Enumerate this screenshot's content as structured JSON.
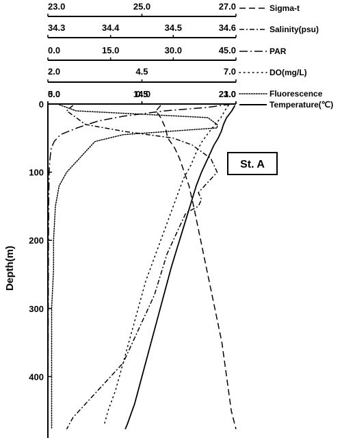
{
  "chart_data": {
    "type": "line",
    "station_label": "St. A",
    "ylabel": "Depth(m)",
    "y_axis": {
      "range": [
        0,
        490
      ],
      "ticks": [
        0,
        100,
        200,
        300,
        400
      ],
      "tick_labels": [
        "0",
        "100",
        "200",
        "300",
        "400"
      ],
      "reversed": true
    },
    "x_axes": [
      {
        "name": "Sigma-t",
        "min": 23.0,
        "max": 27.0,
        "tick_labels": [
          "23.0",
          "25.0",
          "27.0"
        ],
        "style": "dashed"
      },
      {
        "name": "Salinity(psu)",
        "min": 34.3,
        "max": 34.6,
        "tick_labels": [
          "34.3",
          "34.4",
          "34.5",
          "34.6"
        ],
        "style": "dash-dot"
      },
      {
        "name": "PAR",
        "min": 0.0,
        "max": 45.0,
        "tick_labels": [
          "0.0",
          "15.0",
          "30.0",
          "45.0"
        ],
        "style": "long-dash-dot"
      },
      {
        "name": "DO(mg/L)",
        "min": 2.0,
        "max": 7.0,
        "tick_labels": [
          "2.0",
          "4.5",
          "7.0"
        ],
        "style": "sparse-dotted"
      },
      {
        "name": "Fluorescence",
        "min": 0.0,
        "max": 1.0,
        "tick_labels": [
          "0.0",
          "0.5",
          "1.0"
        ],
        "style": "dense-dotted"
      },
      {
        "name": "Temperature(℃)",
        "min": 5.0,
        "max": 23.0,
        "tick_labels": [
          "5.0",
          "14.0",
          "23.0"
        ],
        "style": "solid"
      }
    ],
    "series": [
      {
        "name": "Sigma-t",
        "axis": 0,
        "points": [
          [
            25.4,
            2
          ],
          [
            25.3,
            10
          ],
          [
            25.4,
            20
          ],
          [
            25.5,
            35
          ],
          [
            25.55,
            50
          ],
          [
            25.7,
            65
          ],
          [
            25.8,
            80
          ],
          [
            25.9,
            100
          ],
          [
            26.0,
            120
          ],
          [
            26.1,
            150
          ],
          [
            26.25,
            200
          ],
          [
            26.4,
            250
          ],
          [
            26.55,
            300
          ],
          [
            26.7,
            350
          ],
          [
            26.8,
            400
          ],
          [
            26.9,
            450
          ],
          [
            27.0,
            477
          ]
        ]
      },
      {
        "name": "Salinity(psu)",
        "axis": 1,
        "points": [
          [
            34.34,
            2
          ],
          [
            34.33,
            10
          ],
          [
            34.345,
            20
          ],
          [
            34.36,
            30
          ],
          [
            34.42,
            40
          ],
          [
            34.5,
            50
          ],
          [
            34.53,
            60
          ],
          [
            34.56,
            80
          ],
          [
            34.57,
            100
          ],
          [
            34.56,
            110
          ],
          [
            34.55,
            120
          ],
          [
            34.54,
            130
          ],
          [
            34.545,
            140
          ],
          [
            34.54,
            150
          ],
          [
            34.52,
            160
          ],
          [
            34.51,
            180
          ],
          [
            34.5,
            200
          ],
          [
            34.49,
            220
          ],
          [
            34.48,
            250
          ],
          [
            34.47,
            280
          ],
          [
            34.46,
            300
          ],
          [
            34.45,
            320
          ],
          [
            34.44,
            340
          ],
          [
            34.43,
            360
          ],
          [
            34.42,
            380
          ],
          [
            34.4,
            400
          ],
          [
            34.38,
            420
          ],
          [
            34.36,
            440
          ],
          [
            34.34,
            460
          ],
          [
            34.33,
            477
          ]
        ]
      },
      {
        "name": "PAR",
        "axis": 2,
        "points": [
          [
            44.0,
            0
          ],
          [
            38.0,
            5
          ],
          [
            28.0,
            10
          ],
          [
            18.0,
            18
          ],
          [
            12.0,
            25
          ],
          [
            7.0,
            35
          ],
          [
            3.0,
            45
          ],
          [
            1.5,
            55
          ],
          [
            0.8,
            65
          ],
          [
            0.5,
            80
          ],
          [
            0.3,
            100
          ],
          [
            0.2,
            150
          ],
          [
            0.15,
            200
          ],
          [
            0.1,
            300
          ],
          [
            0.05,
            400
          ],
          [
            0.0,
            477
          ]
        ]
      },
      {
        "name": "DO(mg/L)",
        "axis": 3,
        "points": [
          [
            6.8,
            2
          ],
          [
            6.7,
            10
          ],
          [
            6.6,
            20
          ],
          [
            6.45,
            30
          ],
          [
            6.3,
            40
          ],
          [
            6.1,
            55
          ],
          [
            5.95,
            70
          ],
          [
            5.8,
            90
          ],
          [
            5.6,
            110
          ],
          [
            5.4,
            140
          ],
          [
            5.2,
            170
          ],
          [
            5.0,
            200
          ],
          [
            4.8,
            230
          ],
          [
            4.6,
            260
          ],
          [
            4.4,
            300
          ],
          [
            4.2,
            340
          ],
          [
            4.0,
            380
          ],
          [
            3.8,
            420
          ],
          [
            3.6,
            450
          ],
          [
            3.5,
            470
          ]
        ]
      },
      {
        "name": "Fluorescence",
        "axis": 4,
        "points": [
          [
            0.05,
            0
          ],
          [
            0.15,
            10
          ],
          [
            0.85,
            20
          ],
          [
            0.9,
            30
          ],
          [
            0.9,
            35
          ],
          [
            0.4,
            45
          ],
          [
            0.25,
            55
          ],
          [
            0.2,
            70
          ],
          [
            0.15,
            85
          ],
          [
            0.1,
            100
          ],
          [
            0.06,
            120
          ],
          [
            0.04,
            150
          ],
          [
            0.03,
            200
          ],
          [
            0.03,
            243
          ],
          [
            0.02,
            300
          ],
          [
            0.02,
            400
          ],
          [
            0.02,
            477
          ]
        ]
      },
      {
        "name": "Temperature(℃)",
        "axis": 5,
        "points": [
          [
            22.9,
            2
          ],
          [
            22.6,
            10
          ],
          [
            22.1,
            20
          ],
          [
            21.8,
            30
          ],
          [
            21.6,
            40
          ],
          [
            21.3,
            50
          ],
          [
            20.9,
            60
          ],
          [
            20.6,
            70
          ],
          [
            20.3,
            80
          ],
          [
            20.0,
            90
          ],
          [
            19.7,
            100
          ],
          [
            19.2,
            120
          ],
          [
            18.6,
            150
          ],
          [
            18.0,
            180
          ],
          [
            17.4,
            210
          ],
          [
            16.8,
            240
          ],
          [
            16.1,
            280
          ],
          [
            15.4,
            320
          ],
          [
            14.7,
            360
          ],
          [
            14.0,
            400
          ],
          [
            13.3,
            440
          ],
          [
            12.6,
            470
          ],
          [
            12.4,
            477
          ]
        ]
      }
    ]
  }
}
